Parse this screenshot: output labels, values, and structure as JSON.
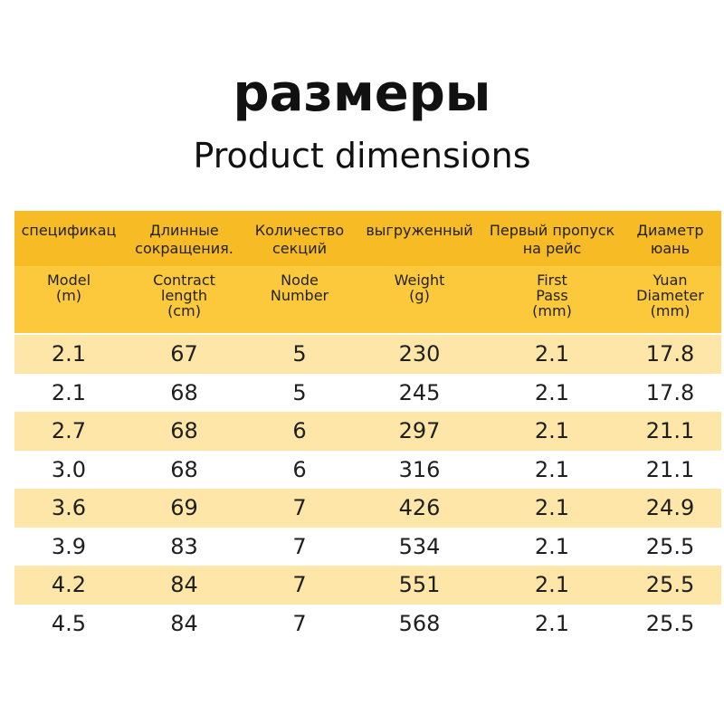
{
  "title": "размеры",
  "subtitle": "Product dimensions",
  "header_ru": [
    "спецификац",
    "Длинные\nсокращения.",
    "Количество\nсекций",
    "выгруженный",
    "Первый пропуск\nна рейс",
    "Диаметр\nюань"
  ],
  "header_en": [
    "Model\n(m)",
    "Contract\nlength\n(cm)",
    "Node\nNumber",
    "Weight\n(g)",
    "First\nPass\n(mm)",
    "Yuan\nDiameter\n(mm)"
  ],
  "rows": [
    [
      "2.1",
      "67",
      "5",
      "230",
      "2.1",
      "17.8"
    ],
    [
      "2.1",
      "68",
      "5",
      "245",
      "2.1",
      "17.8"
    ],
    [
      "2.7",
      "68",
      "6",
      "297",
      "2.1",
      "21.1"
    ],
    [
      "3.0",
      "68",
      "6",
      "316",
      "2.1",
      "21.1"
    ],
    [
      "3.6",
      "69",
      "7",
      "426",
      "2.1",
      "24.9"
    ],
    [
      "3.9",
      "83",
      "7",
      "534",
      "2.1",
      "25.5"
    ],
    [
      "4.2",
      "84",
      "7",
      "551",
      "2.1",
      "25.5"
    ],
    [
      "4.5",
      "84",
      "7",
      "568",
      "2.1",
      "25.5"
    ]
  ],
  "colors": {
    "header_dark": "#f7bb25",
    "header_light": "#fbc93b",
    "row_alt": "#fde6a8"
  }
}
